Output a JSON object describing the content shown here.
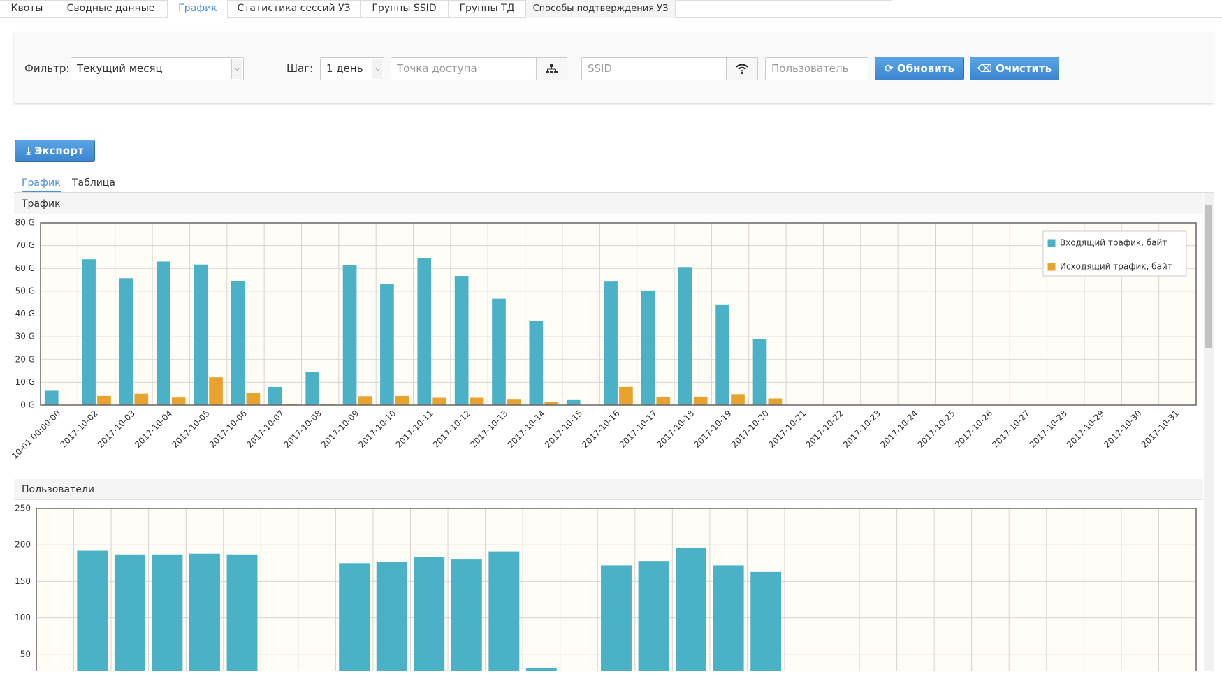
{
  "tabs": [
    "Квоты",
    "Сводные данные",
    "График",
    "Статистика сессий УЗ",
    "Группы SSID",
    "Группы ТД",
    "Способы подтверждения УЗ"
  ],
  "filter": {
    "label": "Фильтр:",
    "value": "Текущий месяц"
  },
  "step": {
    "label": "Шаг:",
    "value": "1 день"
  },
  "access_point_placeholder": "Точка доступа",
  "ssid_placeholder": "SSID",
  "user_placeholder": "Пользователь",
  "refresh_button": "Обновить",
  "clear_button": "Очистить",
  "export_button": "Экспорт",
  "view_tabs": [
    "График",
    "Таблица"
  ],
  "chart_data": [
    {
      "type": "bar",
      "title": "Трафик",
      "categories": [
        "10-01 00:00:00",
        "2017-10-02",
        "2017-10-03",
        "2017-10-04",
        "2017-10-05",
        "2017-10-06",
        "2017-10-07",
        "2017-10-08",
        "2017-10-09",
        "2017-10-10",
        "2017-10-11",
        "2017-10-12",
        "2017-10-13",
        "2017-10-14",
        "2017-10-15",
        "2017-10-16",
        "2017-10-17",
        "2017-10-18",
        "2017-10-19",
        "2017-10-20",
        "2017-10-21",
        "2017-10-22",
        "2017-10-23",
        "2017-10-24",
        "2017-10-25",
        "2017-10-26",
        "2017-10-27",
        "2017-10-28",
        "2017-10-29",
        "2017-10-30",
        "2017-10-31"
      ],
      "series": [
        {
          "name": "Входящий трафик, байт",
          "color": "#4bb1c7",
          "values": [
            6.3,
            64,
            55.7,
            63,
            61.7,
            54.5,
            8,
            14.7,
            61.5,
            53.3,
            64.6,
            56.7,
            46.7,
            37,
            2.5,
            54.2,
            50.3,
            60.6,
            44.2,
            29,
            0,
            0,
            0,
            0,
            0,
            0,
            0,
            0,
            0,
            0,
            0
          ]
        },
        {
          "name": "Исходящий трафик, байт",
          "color": "#e9a22d",
          "values": [
            0,
            4,
            5,
            3.3,
            12.2,
            5.2,
            0.5,
            0.5,
            3.9,
            4,
            3.2,
            3.2,
            2.7,
            1.3,
            0,
            8,
            3.4,
            3.7,
            4.8,
            2.9,
            0,
            0,
            0,
            0,
            0,
            0,
            0,
            0,
            0,
            0,
            0
          ]
        }
      ],
      "ylim": [
        0,
        80
      ],
      "yticks": [
        {
          "value": 0,
          "label": "0 G"
        },
        {
          "value": 10,
          "label": "10 G"
        },
        {
          "value": 20,
          "label": "20 G"
        },
        {
          "value": 30,
          "label": "30 G"
        },
        {
          "value": 40,
          "label": "40 G"
        },
        {
          "value": 50,
          "label": "50 G"
        },
        {
          "value": 60,
          "label": "60 G"
        },
        {
          "value": 70,
          "label": "70 G"
        },
        {
          "value": 80,
          "label": "80 G"
        }
      ],
      "grid": true,
      "legend": "upper right"
    },
    {
      "type": "bar",
      "title": "Пользователи",
      "categories": [
        null,
        null,
        null,
        null,
        null,
        null,
        null,
        null,
        null,
        null,
        null,
        null,
        null,
        null,
        null,
        null,
        null,
        null,
        null,
        null,
        null,
        null,
        null,
        null,
        null,
        null,
        null,
        null,
        null,
        null,
        null
      ],
      "values": [
        0,
        192,
        187,
        187,
        188,
        187,
        0,
        0,
        175,
        177,
        183,
        180,
        191,
        31,
        0,
        172,
        178,
        196,
        172,
        163,
        0,
        0,
        0,
        0,
        0,
        0,
        0,
        0,
        0,
        0,
        0
      ],
      "color": "#4bb1c7",
      "ylim": [
        0,
        250
      ],
      "yticks": [
        50,
        100,
        150,
        200,
        250
      ],
      "grid": true
    }
  ]
}
